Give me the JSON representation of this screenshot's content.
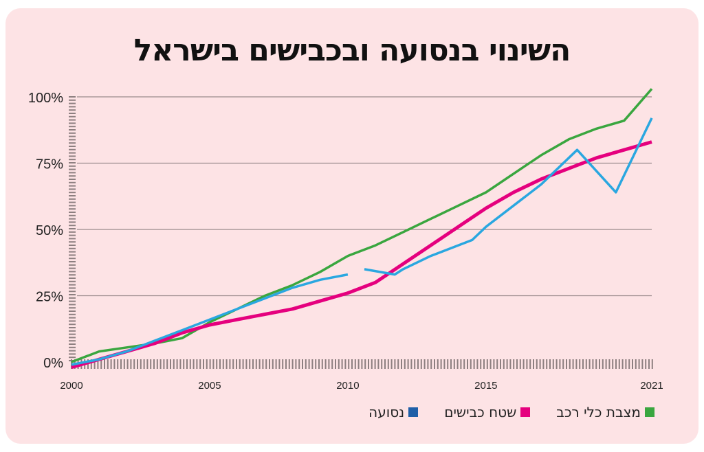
{
  "title": "השינוי בנסועה ובכבישים בישראל",
  "legend": [
    {
      "label": "מצבת כלי רכב",
      "color": "#3aa63f"
    },
    {
      "label": "שטח כבישים",
      "color": "#e5007e"
    },
    {
      "label": "נסועה",
      "color": "#1f5fa8"
    }
  ],
  "y_ticks": [
    "0%",
    "25%",
    "50%",
    "75%",
    "100%"
  ],
  "x_ticks": [
    "2000",
    "2005",
    "2010",
    "2015",
    "2021"
  ],
  "chart_data": {
    "type": "line",
    "title": "השינוי בנסועה ובכבישים בישראל",
    "xlabel": "",
    "ylabel": "",
    "ylim": [
      0,
      100
    ],
    "xlim": [
      2000,
      2021
    ],
    "grid": true,
    "legend_position": "bottom-right",
    "y_tick_labels": [
      "0%",
      "25%",
      "50%",
      "75%",
      "100%"
    ],
    "x_tick_labels": [
      "2000",
      "2005",
      "2010",
      "2015",
      "2021"
    ],
    "series": [
      {
        "name": "מצבת כלי רכב",
        "color": "#3aa63f",
        "x": [
          2000,
          2001,
          2002,
          2003,
          2004,
          2005,
          2006,
          2007,
          2008,
          2009,
          2010,
          2011,
          2012,
          2013,
          2014,
          2015,
          2016,
          2017,
          2018,
          2019,
          2020,
          2021
        ],
        "values": [
          0,
          4,
          5.5,
          7,
          9,
          15,
          20,
          25,
          29,
          34,
          40,
          44,
          49,
          54,
          59,
          64,
          71,
          78,
          84,
          88,
          91,
          103
        ]
      },
      {
        "name": "שטח כבישים",
        "color": "#e5007e",
        "x": [
          2000,
          2001,
          2002,
          2003,
          2004,
          2005,
          2006,
          2007,
          2008,
          2009,
          2010,
          2011,
          2012,
          2013,
          2014,
          2015,
          2016,
          2017,
          2018,
          2019,
          2020,
          2021
        ],
        "values": [
          -2,
          1,
          4,
          7,
          11,
          14,
          16,
          18,
          20,
          23,
          26,
          30,
          37,
          44,
          51,
          58,
          64,
          69,
          73,
          77,
          80,
          83
        ]
      },
      {
        "name": "נסועה",
        "color": "#2aa7e0",
        "legend_color": "#1f5fa8",
        "segments": [
          {
            "x": [
              2000,
              2001,
              2002,
              2003,
              2004,
              2005,
              2006,
              2007,
              2008,
              2009,
              2010
            ],
            "values": [
              -1,
              1,
              4,
              8,
              12,
              16,
              20,
              24,
              28,
              31,
              33
            ]
          },
          {
            "x": [
              2010.6,
              2011.7,
              2012,
              2013,
              2014.5,
              2015,
              2016,
              2017,
              2018.3,
              2019.7,
              2021
            ],
            "values": [
              35,
              33,
              35,
              40,
              46,
              51,
              59,
              67,
              80,
              64,
              92
            ]
          }
        ]
      }
    ]
  }
}
